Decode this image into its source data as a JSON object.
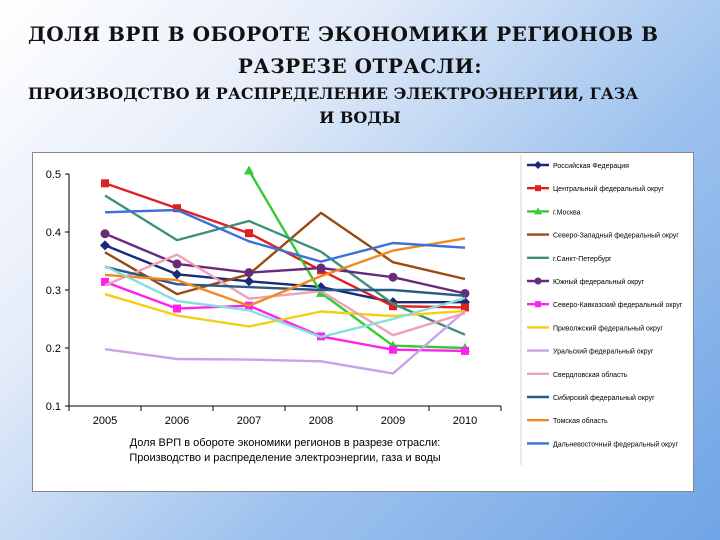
{
  "header": {
    "title_line1": "ДОЛЯ ВРП В ОБОРОТЕ  ЭКОНОМИКИ РЕГИОНОВ В",
    "title_line2": "РАЗРЕЗЕ ОТРАСЛИ:",
    "title_line3": "ПРОИЗВОДСТВО И РАСПРЕДЕЛЕНИЕ ЭЛЕКТРОЭНЕРГИИ,  ГАЗА",
    "title_line4": "И ВОДЫ"
  },
  "chart_data": {
    "type": "line",
    "x": [
      "2005",
      "2006",
      "2007",
      "2008",
      "2009",
      "2010"
    ],
    "ylim": [
      0.1,
      0.5
    ],
    "yticks": [
      "0.1",
      "0.2",
      "0.3",
      "0.4",
      "0.5"
    ],
    "grid": false,
    "legend": "right",
    "title_line1": "Доля ВРП в обороте  экономики регионов в разрезе отрасли:",
    "title_line2": "Производство и распределение электроэнергии,  газа и воды",
    "series": [
      {
        "name": "Российская Федерация",
        "color": "#1a2a7a",
        "marker": "diamond",
        "values": [
          0.377,
          0.327,
          0.315,
          0.305,
          0.279,
          0.279
        ]
      },
      {
        "name": "Центральный федеральный округ",
        "color": "#e02020",
        "marker": "square",
        "values": [
          0.484,
          0.441,
          0.398,
          0.334,
          0.272,
          0.27
        ]
      },
      {
        "name": "г.Москва",
        "color": "#33cc33",
        "marker": "triangle",
        "values": [
          null,
          null,
          0.506,
          0.295,
          0.204,
          0.2
        ]
      },
      {
        "name": "Северо-Западный федеральный округ",
        "color": "#9a4a12",
        "marker": "none",
        "values": [
          0.365,
          0.293,
          0.327,
          0.433,
          0.348,
          0.319
        ]
      },
      {
        "name": "г.Санкт-Петербург",
        "color": "#3d8f7a",
        "marker": "none",
        "values": [
          0.463,
          0.386,
          0.419,
          0.366,
          0.276,
          0.223
        ]
      },
      {
        "name": "Южный федеральный округ",
        "color": "#6a2a7a",
        "marker": "circle",
        "values": [
          0.397,
          0.345,
          0.33,
          0.338,
          0.322,
          0.294
        ]
      },
      {
        "name": "Северо-Кавказский федеральный округ",
        "color": "#ff22ee",
        "marker": "square",
        "values": [
          0.314,
          0.268,
          0.273,
          0.22,
          0.197,
          0.195
        ]
      },
      {
        "name": "Приволжский федеральный округ",
        "color": "#f0d010",
        "marker": "none",
        "values": [
          0.293,
          0.256,
          0.237,
          0.263,
          0.255,
          0.264
        ]
      },
      {
        "name": "Уральский федеральный округ",
        "color": "#c8a2e8",
        "marker": "none",
        "values": [
          0.198,
          0.181,
          0.18,
          0.177,
          0.156,
          0.264
        ]
      },
      {
        "name": "Свердловская область",
        "color": "#f0a0b8",
        "marker": "none",
        "values": [
          0.308,
          0.361,
          0.285,
          0.298,
          0.222,
          0.26
        ]
      },
      {
        "name": "Сибирский федеральный округ",
        "color": "#2a5a88",
        "marker": "none",
        "values": [
          0.34,
          0.31,
          0.305,
          0.3,
          0.3,
          0.29
        ]
      },
      {
        "name": "Томская область",
        "color": "#f08a20",
        "marker": "none",
        "values": [
          0.326,
          0.317,
          0.273,
          0.324,
          0.368,
          0.389
        ]
      },
      {
        "name": "Дальневосточный федеральный округ",
        "color": "#3a70d8",
        "marker": "none",
        "values": [
          0.434,
          0.438,
          0.384,
          0.349,
          0.381,
          0.373
        ]
      },
      {
        "name": "",
        "color": "#88dde0",
        "marker": "none",
        "values": [
          0.341,
          0.281,
          0.265,
          0.219,
          0.25,
          0.286
        ]
      }
    ]
  }
}
